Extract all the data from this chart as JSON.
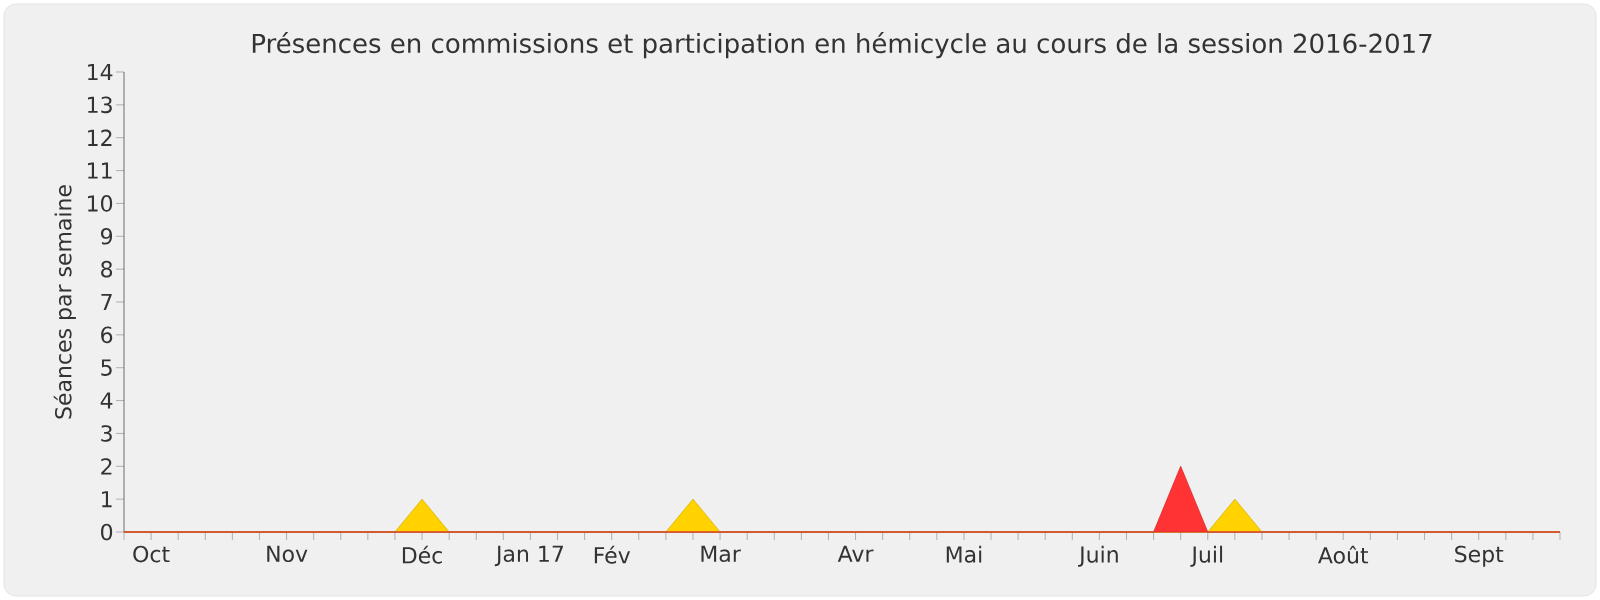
{
  "chart_data": {
    "type": "area",
    "title": "Présences en commissions et participation en hémicycle au cours de la session 2016-2017",
    "ylabel": "Séances par semaine",
    "categories": [
      null,
      "Oct",
      null,
      null,
      null,
      null,
      "Nov",
      null,
      null,
      null,
      null,
      "Déc",
      null,
      null,
      null,
      "Jan 17",
      null,
      null,
      "Fév",
      null,
      null,
      null,
      "Mar",
      null,
      null,
      null,
      null,
      "Avr",
      null,
      null,
      null,
      "Mai",
      null,
      null,
      null,
      null,
      "Juin",
      null,
      null,
      null,
      "Juil",
      null,
      null,
      null,
      null,
      "Août",
      null,
      null,
      null,
      null,
      "Sept",
      null,
      null,
      null
    ],
    "series": [
      {
        "color": "#ffd200",
        "values": [
          0,
          0,
          0,
          0,
          0,
          0,
          0,
          0,
          0,
          0,
          0,
          1,
          0,
          0,
          0,
          0,
          0,
          0,
          0,
          0,
          0,
          1,
          0,
          0,
          0,
          0,
          0,
          0,
          0,
          0,
          0,
          0,
          0,
          0,
          0,
          0,
          0,
          0,
          0,
          0,
          0,
          1,
          0,
          0,
          0,
          0,
          0,
          0,
          0,
          0,
          0,
          0,
          0,
          0
        ]
      },
      {
        "color": "#ff3333",
        "values": [
          0,
          0,
          0,
          0,
          0,
          0,
          0,
          0,
          0,
          0,
          0,
          0,
          0,
          0,
          0,
          0,
          0,
          0,
          0,
          0,
          0,
          0,
          0,
          0,
          0,
          0,
          0,
          0,
          0,
          0,
          0,
          0,
          0,
          0,
          0,
          0,
          0,
          0,
          0,
          2,
          0,
          0,
          0,
          0,
          0,
          0,
          0,
          0,
          0,
          0,
          0,
          0,
          0,
          0
        ]
      }
    ],
    "ylim": [
      0,
      14
    ],
    "yticks": [
      0,
      1,
      2,
      3,
      4,
      5,
      6,
      7,
      8,
      9,
      10,
      11,
      12,
      13,
      14
    ]
  }
}
